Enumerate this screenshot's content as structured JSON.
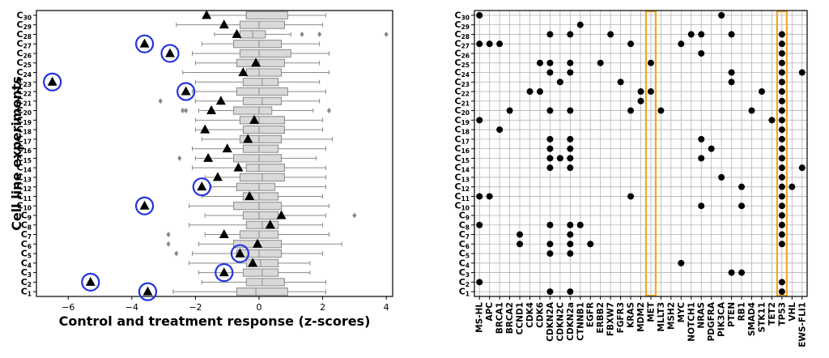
{
  "chart_data": [
    {
      "type": "box",
      "xlabel": "Control and treatment response (z-scores)",
      "ylabel": "Cell line experiments",
      "xlim": [
        -7,
        4.2
      ],
      "xticks": [
        -6,
        -4,
        -2,
        0,
        2,
        4
      ],
      "categories": [
        "C1",
        "C2",
        "C3",
        "C4",
        "C5",
        "C6",
        "C7",
        "C8",
        "C9",
        "C10",
        "C11",
        "C12",
        "C13",
        "C14",
        "C15",
        "C16",
        "C17",
        "C18",
        "C19",
        "C20",
        "C21",
        "C22",
        "C23",
        "C24",
        "C25",
        "C26",
        "C27",
        "C28",
        "C29",
        "C30"
      ],
      "colors": {
        "box_fill": "#d9d9d9",
        "box_edge": "#8a8a8a",
        "outlier": "#8a8a8a",
        "treatment_marker": "#000000",
        "circle": "#2233dd"
      },
      "boxes": [
        {
          "whislo": -2.7,
          "q1": -0.7,
          "med": -0.1,
          "q3": 0.9,
          "whishi": 2.1,
          "outliers": []
        },
        {
          "whislo": -1.8,
          "q1": -0.4,
          "med": 0.1,
          "q3": 0.8,
          "whishi": 2.1,
          "outliers": []
        },
        {
          "whislo": -1.9,
          "q1": -0.5,
          "med": 0.1,
          "q3": 0.6,
          "whishi": 1.6,
          "outliers": []
        },
        {
          "whislo": -2.2,
          "q1": -0.4,
          "med": 0.05,
          "q3": 0.6,
          "whishi": 1.6,
          "outliers": []
        },
        {
          "whislo": -2.1,
          "q1": -0.7,
          "med": 0.0,
          "q3": 0.7,
          "whishi": 2.0,
          "outliers": [
            -2.6
          ]
        },
        {
          "whislo": -1.9,
          "q1": -0.8,
          "med": 0.0,
          "q3": 0.7,
          "whishi": 2.6,
          "outliers": [
            -2.85
          ]
        },
        {
          "whislo": -1.7,
          "q1": -0.6,
          "med": 0.0,
          "q3": 0.6,
          "whishi": 2.2,
          "outliers": [
            -2.85
          ]
        },
        {
          "whislo": -2.2,
          "q1": -0.4,
          "med": 0.1,
          "q3": 0.6,
          "whishi": 2.0,
          "outliers": []
        },
        {
          "whislo": -1.7,
          "q1": -0.5,
          "med": 0.0,
          "q3": 0.6,
          "whishi": 2.1,
          "outliers": [
            3.0
          ]
        },
        {
          "whislo": -2.2,
          "q1": -0.8,
          "med": 0.0,
          "q3": 0.7,
          "whishi": 2.2,
          "outliers": []
        },
        {
          "whislo": -1.8,
          "q1": -0.5,
          "med": 0.0,
          "q3": 0.6,
          "whishi": 2.0,
          "outliers": []
        },
        {
          "whislo": -1.5,
          "q1": -0.7,
          "med": 0.0,
          "q3": 0.5,
          "whishi": 2.1,
          "outliers": []
        },
        {
          "whislo": -1.7,
          "q1": -0.6,
          "med": 0.1,
          "q3": 0.8,
          "whishi": 2.1,
          "outliers": []
        },
        {
          "whislo": -2.1,
          "q1": -0.4,
          "med": 0.0,
          "q3": 0.8,
          "whishi": 2.1,
          "outliers": []
        },
        {
          "whislo": -2.0,
          "q1": -0.8,
          "med": 0.0,
          "q3": 0.7,
          "whishi": 1.8,
          "outliers": [
            -2.5
          ]
        },
        {
          "whislo": -2.1,
          "q1": -0.5,
          "med": 0.0,
          "q3": 0.6,
          "whishi": 2.1,
          "outliers": []
        },
        {
          "whislo": -1.8,
          "q1": -0.6,
          "med": 0.0,
          "q3": 0.7,
          "whishi": 2.3,
          "outliers": []
        },
        {
          "whislo": -2.0,
          "q1": -0.5,
          "med": 0.0,
          "q3": 0.8,
          "whishi": 2.0,
          "outliers": []
        },
        {
          "whislo": -2.0,
          "q1": -0.6,
          "med": 0.0,
          "q3": 0.8,
          "whishi": 2.0,
          "outliers": []
        },
        {
          "whislo": -1.9,
          "q1": -0.8,
          "med": 0.0,
          "q3": 0.4,
          "whishi": 1.7,
          "outliers": [
            -2.3,
            -2.4,
            2.2
          ]
        },
        {
          "whislo": -2.0,
          "q1": -0.5,
          "med": 0.1,
          "q3": 0.7,
          "whishi": 1.9,
          "outliers": [
            -3.1
          ]
        },
        {
          "whislo": -2.1,
          "q1": -0.7,
          "med": 0.0,
          "q3": 0.9,
          "whishi": 2.1,
          "outliers": []
        },
        {
          "whislo": -2.0,
          "q1": -0.5,
          "med": 0.1,
          "q3": 0.6,
          "whishi": 1.9,
          "outliers": []
        },
        {
          "whislo": -2.4,
          "q1": -0.4,
          "med": 0.0,
          "q3": 0.7,
          "whishi": 2.2,
          "outliers": []
        },
        {
          "whislo": -2.0,
          "q1": -0.7,
          "med": 0.0,
          "q3": 0.8,
          "whishi": 1.9,
          "outliers": []
        },
        {
          "whislo": -2.1,
          "q1": -0.6,
          "med": 0.0,
          "q3": 1.0,
          "whishi": 2.2,
          "outliers": []
        },
        {
          "whislo": -1.8,
          "q1": -0.8,
          "med": 0.0,
          "q3": 0.7,
          "whishi": 1.9,
          "outliers": []
        },
        {
          "whislo": -1.4,
          "q1": -0.6,
          "med": -0.2,
          "q3": 0.2,
          "whishi": 1.0,
          "outliers": [
            1.35,
            1.9,
            4.0
          ]
        },
        {
          "whislo": -2.6,
          "q1": -0.6,
          "med": 0.0,
          "q3": 0.8,
          "whishi": 2.0,
          "outliers": []
        },
        {
          "whislo": -1.6,
          "q1": -0.4,
          "med": -0.4,
          "q3": 0.9,
          "whishi": 2.1,
          "outliers": []
        }
      ],
      "treatment": [
        -3.5,
        -5.3,
        -1.1,
        -0.2,
        -0.6,
        -0.05,
        -1.1,
        0.35,
        0.7,
        -3.6,
        -0.3,
        -1.8,
        -1.3,
        -0.65,
        -1.6,
        -1.0,
        -0.35,
        -1.7,
        -0.15,
        -1.5,
        -1.2,
        -2.3,
        -6.5,
        -0.5,
        -0.1,
        -2.8,
        -3.6,
        -0.7,
        -1.1,
        -1.65
      ],
      "circled": [
        "C1",
        "C2",
        "C3",
        "C5",
        "C10",
        "C12",
        "C22",
        "C23",
        "C26",
        "C27"
      ]
    },
    {
      "type": "dot-matrix",
      "genes": [
        "MS-HL",
        "APC",
        "BRCA1",
        "BRCA2",
        "CCND1",
        "CDK4",
        "CDK6",
        "CDKN2A",
        "CDKN2C",
        "CDKN2a",
        "CTNNB1",
        "EGFR",
        "ERBB2",
        "FBXW7",
        "FGFR3",
        "KRAS",
        "MDM2",
        "MET",
        "MLLT3",
        "MSH2",
        "MYC",
        "NOTCH1",
        "NRAS",
        "PDGFRA",
        "PIK3CA",
        "PTEN",
        "RB1",
        "SMAD4",
        "STK11",
        "TET2",
        "TP53",
        "VHL",
        "EWS-FLI1"
      ],
      "categories": [
        "C1",
        "C2",
        "C3",
        "C4",
        "C5",
        "C6",
        "C7",
        "C8",
        "C9",
        "C10",
        "C11",
        "C12",
        "C13",
        "C14",
        "C15",
        "C16",
        "C17",
        "C18",
        "C19",
        "C20",
        "C21",
        "C22",
        "C23",
        "C24",
        "C25",
        "C26",
        "C27",
        "C28",
        "C29",
        "C30"
      ],
      "highlighted_columns": [
        "MET",
        "TP53"
      ],
      "highlight_color": "#f5a623",
      "dot_color": "#000000",
      "cells": [
        [
          "C30",
          "MS-HL"
        ],
        [
          "C30",
          "PIK3CA"
        ],
        [
          "C29",
          "CTNNB1"
        ],
        [
          "C28",
          "CDKN2A"
        ],
        [
          "C28",
          "CDKN2a"
        ],
        [
          "C28",
          "FBXW7"
        ],
        [
          "C28",
          "NOTCH1"
        ],
        [
          "C28",
          "NRAS"
        ],
        [
          "C28",
          "PTEN"
        ],
        [
          "C28",
          "TP53"
        ],
        [
          "C27",
          "MS-HL"
        ],
        [
          "C27",
          "APC"
        ],
        [
          "C27",
          "BRCA1"
        ],
        [
          "C27",
          "KRAS"
        ],
        [
          "C27",
          "MYC"
        ],
        [
          "C27",
          "TP53"
        ],
        [
          "C26",
          "NRAS"
        ],
        [
          "C26",
          "TP53"
        ],
        [
          "C25",
          "CDK6"
        ],
        [
          "C25",
          "CDKN2A"
        ],
        [
          "C25",
          "CDKN2a"
        ],
        [
          "C25",
          "ERBB2"
        ],
        [
          "C25",
          "MET"
        ],
        [
          "C25",
          "TP53"
        ],
        [
          "C24",
          "CDKN2A"
        ],
        [
          "C24",
          "CDKN2a"
        ],
        [
          "C24",
          "PTEN"
        ],
        [
          "C24",
          "TP53"
        ],
        [
          "C24",
          "EWS-FLI1"
        ],
        [
          "C23",
          "CDKN2C"
        ],
        [
          "C23",
          "FGFR3"
        ],
        [
          "C23",
          "PTEN"
        ],
        [
          "C23",
          "TP53"
        ],
        [
          "C22",
          "CDK4"
        ],
        [
          "C22",
          "CDK6"
        ],
        [
          "C22",
          "MDM2"
        ],
        [
          "C22",
          "MET"
        ],
        [
          "C22",
          "STK11"
        ],
        [
          "C22",
          "TP53"
        ],
        [
          "C21",
          "MDM2"
        ],
        [
          "C21",
          "TP53"
        ],
        [
          "C20",
          "BRCA2"
        ],
        [
          "C20",
          "CDKN2A"
        ],
        [
          "C20",
          "CDKN2a"
        ],
        [
          "C20",
          "KRAS"
        ],
        [
          "C20",
          "MLLT3"
        ],
        [
          "C20",
          "SMAD4"
        ],
        [
          "C20",
          "TP53"
        ],
        [
          "C19",
          "MS-HL"
        ],
        [
          "C19",
          "TET2"
        ],
        [
          "C19",
          "TP53"
        ],
        [
          "C18",
          "BRCA1"
        ],
        [
          "C18",
          "TP53"
        ],
        [
          "C17",
          "CDKN2A"
        ],
        [
          "C17",
          "CDKN2a"
        ],
        [
          "C17",
          "NRAS"
        ],
        [
          "C17",
          "TP53"
        ],
        [
          "C16",
          "CDKN2A"
        ],
        [
          "C16",
          "CDKN2a"
        ],
        [
          "C16",
          "PDGFRA"
        ],
        [
          "C16",
          "TP53"
        ],
        [
          "C15",
          "CDKN2A"
        ],
        [
          "C15",
          "CDKN2C"
        ],
        [
          "C15",
          "CDKN2a"
        ],
        [
          "C15",
          "NRAS"
        ],
        [
          "C15",
          "TP53"
        ],
        [
          "C14",
          "CDKN2A"
        ],
        [
          "C14",
          "CDKN2a"
        ],
        [
          "C14",
          "TP53"
        ],
        [
          "C14",
          "EWS-FLI1"
        ],
        [
          "C13",
          "PIK3CA"
        ],
        [
          "C13",
          "TP53"
        ],
        [
          "C12",
          "RB1"
        ],
        [
          "C12",
          "TP53"
        ],
        [
          "C12",
          "VHL"
        ],
        [
          "C11",
          "MS-HL"
        ],
        [
          "C11",
          "APC"
        ],
        [
          "C11",
          "KRAS"
        ],
        [
          "C11",
          "TP53"
        ],
        [
          "C10",
          "NRAS"
        ],
        [
          "C10",
          "RB1"
        ],
        [
          "C10",
          "TP53"
        ],
        [
          "C9",
          "TP53"
        ],
        [
          "C8",
          "MS-HL"
        ],
        [
          "C8",
          "CDKN2A"
        ],
        [
          "C8",
          "CDKN2a"
        ],
        [
          "C8",
          "CTNNB1"
        ],
        [
          "C8",
          "TP53"
        ],
        [
          "C7",
          "CCND1"
        ],
        [
          "C7",
          "CDKN2a"
        ],
        [
          "C7",
          "TP53"
        ],
        [
          "C6",
          "CCND1"
        ],
        [
          "C6",
          "CDKN2A"
        ],
        [
          "C6",
          "CDKN2a"
        ],
        [
          "C6",
          "EGFR"
        ],
        [
          "C6",
          "TP53"
        ],
        [
          "C5",
          "CDKN2A"
        ],
        [
          "C5",
          "CDKN2a"
        ],
        [
          "C4",
          "MYC"
        ],
        [
          "C3",
          "PTEN"
        ],
        [
          "C3",
          "RB1"
        ],
        [
          "C2",
          "MS-HL"
        ],
        [
          "C2",
          "TP53"
        ],
        [
          "C1",
          "CDKN2A"
        ],
        [
          "C1",
          "CDKN2a"
        ],
        [
          "C1",
          "TP53"
        ]
      ]
    }
  ]
}
